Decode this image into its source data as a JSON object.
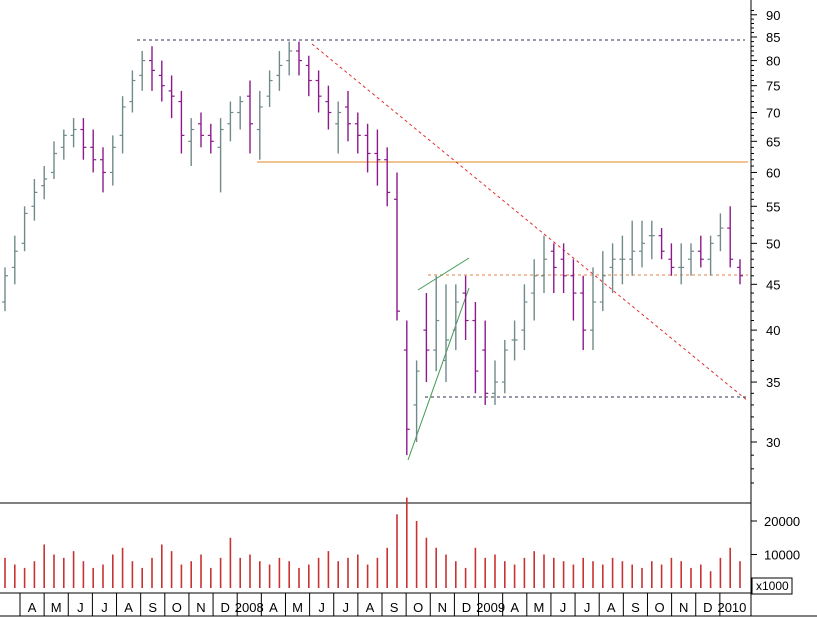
{
  "chart_data": [
    {
      "type": "ohlc",
      "panel": "price",
      "y_scale": "log",
      "ylim": [
        26,
        92
      ],
      "y_ticks": [
        30,
        35,
        40,
        45,
        50,
        55,
        60,
        65,
        70,
        75,
        80,
        85,
        90
      ],
      "y_tick_labels": [
        "30",
        "35",
        "40",
        "45",
        "50",
        "55",
        "60",
        "65",
        "70",
        "75",
        "80",
        "85",
        "90"
      ],
      "grid": false,
      "x_range": [
        "2007-03-12",
        "2010-01-25"
      ],
      "series": [
        {
          "date": [
            "2007-03-12",
            "2007-03-26",
            "2007-04-09",
            "2007-04-23",
            "2007-05-07",
            "2007-05-21",
            "2007-06-04",
            "2007-06-18",
            "2007-07-02",
            "2007-07-16",
            "2007-07-30",
            "2007-08-13",
            "2007-08-27",
            "2007-09-10",
            "2007-09-24",
            "2007-10-08",
            "2007-10-22",
            "2007-11-05",
            "2007-11-19",
            "2007-12-03",
            "2007-12-17",
            "2007-12-31",
            "2008-01-14",
            "2008-01-28",
            "2008-02-11",
            "2008-02-25",
            "2008-03-10",
            "2008-03-24",
            "2008-04-07",
            "2008-04-21",
            "2008-05-05",
            "2008-05-19",
            "2008-06-02",
            "2008-06-16",
            "2008-06-30",
            "2008-07-14",
            "2008-07-28",
            "2008-08-11",
            "2008-08-25",
            "2008-09-08",
            "2008-09-22",
            "2008-10-06",
            "2008-10-20",
            "2008-11-03",
            "2008-11-17",
            "2008-12-01",
            "2008-12-15",
            "2008-12-29",
            "2009-01-12",
            "2009-01-26",
            "2009-02-09",
            "2009-02-23",
            "2009-03-09",
            "2009-03-23",
            "2009-04-06",
            "2009-04-20",
            "2009-05-04",
            "2009-05-18",
            "2009-06-01",
            "2009-06-15",
            "2009-06-29",
            "2009-07-13",
            "2009-07-27",
            "2009-08-10",
            "2009-08-24",
            "2009-09-07",
            "2009-09-21",
            "2009-10-05",
            "2009-10-19",
            "2009-11-02",
            "2009-11-16",
            "2009-11-30",
            "2009-12-14",
            "2009-12-28",
            "2010-01-11",
            "2010-01-25"
          ],
          "open": [
            43,
            47,
            50,
            55,
            58,
            60,
            64,
            66,
            67,
            64,
            62,
            60,
            66,
            72,
            77,
            80,
            77,
            74,
            72,
            65,
            68,
            66,
            64,
            68,
            70,
            73,
            67,
            73,
            77,
            80,
            82,
            79,
            76,
            72,
            68,
            71,
            68,
            66,
            63,
            62,
            56,
            38,
            33,
            40,
            38,
            37,
            40,
            44,
            41,
            38,
            34,
            35,
            39,
            40,
            44,
            46,
            49,
            48,
            46,
            44,
            40,
            43,
            47,
            48,
            48,
            49,
            51,
            51,
            48,
            47,
            48,
            49,
            48,
            51,
            52,
            47
          ],
          "high": [
            47,
            51,
            55,
            59,
            61,
            65,
            67,
            69,
            69,
            67,
            64,
            66,
            73,
            78,
            82,
            83,
            80,
            77,
            74,
            69,
            70,
            68,
            69,
            72,
            73,
            76,
            74,
            78,
            82,
            84,
            84,
            81,
            78,
            75,
            72,
            74,
            70,
            68,
            67,
            64,
            60,
            41,
            37,
            44,
            46,
            45,
            45,
            46,
            43,
            41,
            37,
            39,
            41,
            45,
            48,
            51,
            50,
            50,
            48,
            46,
            47,
            49,
            50,
            51,
            53,
            53,
            53,
            52,
            50,
            50,
            50,
            51,
            51,
            54,
            55,
            48
          ],
          "low": [
            42,
            45,
            49,
            53,
            56,
            59,
            62,
            64,
            62,
            60,
            57,
            58,
            63,
            70,
            74,
            74,
            72,
            69,
            63,
            61,
            64,
            63,
            57,
            65,
            67,
            63,
            62,
            71,
            74,
            77,
            77,
            73,
            70,
            67,
            63,
            65,
            63,
            60,
            58,
            55,
            41,
            29,
            30,
            35,
            36,
            35,
            38,
            39,
            34,
            33,
            33,
            34,
            37,
            38,
            41,
            44,
            44,
            44,
            41,
            38,
            38,
            42,
            44,
            45,
            46,
            47,
            48,
            48,
            46,
            45,
            46,
            47,
            46,
            49,
            47,
            45
          ],
          "close": [
            46,
            49,
            54,
            57,
            59,
            63,
            66,
            67,
            64,
            62,
            60,
            64,
            71,
            76,
            80,
            78,
            75,
            73,
            66,
            67,
            66,
            65,
            67,
            70,
            72,
            68,
            71,
            76,
            79,
            82,
            80,
            76,
            73,
            70,
            70,
            68,
            66,
            63,
            62,
            57,
            42,
            31,
            36,
            38,
            41,
            39,
            43,
            41,
            36,
            34,
            35,
            38,
            39,
            43,
            46,
            48,
            47,
            46,
            44,
            40,
            43,
            46,
            48,
            48,
            49,
            50,
            51,
            49,
            47,
            47,
            49,
            48,
            50,
            52,
            48,
            46
          ]
        }
      ]
    },
    {
      "type": "bar",
      "panel": "volume",
      "unit_label": "x1000",
      "ylim": [
        0,
        30000
      ],
      "y_ticks": [
        10000,
        20000
      ],
      "y_tick_labels": [
        "10000",
        "20000"
      ],
      "x_range": [
        "2007-03-12",
        "2010-01-25"
      ],
      "series": [
        {
          "values": [
            9000,
            7000,
            6000,
            8000,
            13000,
            10000,
            9000,
            11000,
            8000,
            6000,
            7000,
            10000,
            12000,
            8000,
            6000,
            9000,
            13000,
            11000,
            7000,
            8000,
            10000,
            6000,
            9000,
            15000,
            9000,
            10000,
            8000,
            7000,
            9000,
            8000,
            6000,
            7000,
            9000,
            11000,
            8000,
            9000,
            10000,
            7000,
            9000,
            12000,
            22000,
            27000,
            20000,
            15000,
            12000,
            10000,
            8000,
            6000,
            12000,
            9000,
            10000,
            8000,
            7000,
            9000,
            11000,
            10000,
            9000,
            8000,
            7000,
            9000,
            8000,
            7000,
            9000,
            8000,
            7000,
            6000,
            8000,
            7000,
            9000,
            8000,
            6000,
            7000,
            5000,
            9000,
            12000,
            8000
          ]
        }
      ]
    },
    {
      "type": "axis",
      "x_tick_labels": [
        "A",
        "M",
        "J",
        "J",
        "A",
        "S",
        "O",
        "N",
        "D",
        "2008",
        "A",
        "M",
        "J",
        "J",
        "A",
        "S",
        "O",
        "N",
        "D",
        "2009",
        "A",
        "M",
        "J",
        "J",
        "A",
        "S",
        "O",
        "N",
        "D",
        "2010"
      ]
    }
  ],
  "colors": {
    "up_bar": "#708a8a",
    "down_bar": "#8c1a8c",
    "volume_bar": "#c83232",
    "resistance_line": "#e6a050",
    "trend_line": "#e03030",
    "channel_line": "#3c9c50",
    "guide_line": "#303050",
    "axis": "#000000"
  }
}
